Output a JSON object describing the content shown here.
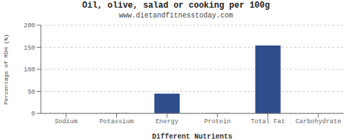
{
  "chart_data": {
    "type": "bar",
    "title": "Oil, olive, salad or cooking per 100g",
    "subtitle": "www.dietandfitnesstoday.com",
    "xlabel": "Different Nutrients",
    "ylabel": "Percentage of RDH (%)",
    "categories": [
      "Sodium",
      "Potassium",
      "Energy",
      "Protein",
      "Total Fat",
      "Carbohydrate"
    ],
    "values": [
      0,
      0.5,
      45,
      0.5,
      154,
      0
    ],
    "color": "#2e4d8a",
    "ylim": [
      0,
      200
    ],
    "yticks": [
      0,
      50,
      100,
      150,
      200
    ],
    "grid": true
  }
}
